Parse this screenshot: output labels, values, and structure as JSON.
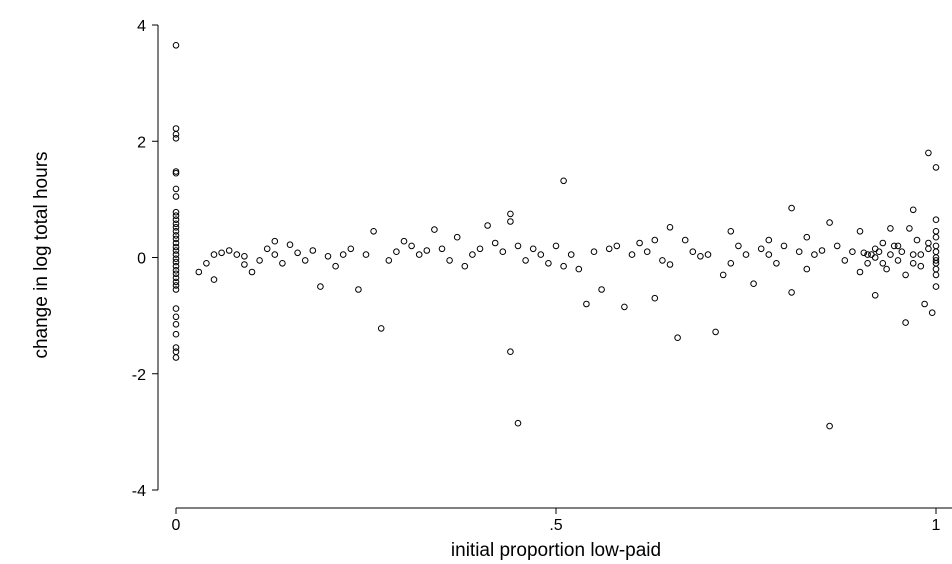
{
  "chart_data": {
    "type": "scatter",
    "title": "",
    "xlabel": "initial proportion low-paid",
    "ylabel": "change in log total hours",
    "xlim": [
      0,
      1
    ],
    "ylim": [
      -4,
      4
    ],
    "x_ticks": [
      0,
      0.5,
      1
    ],
    "x_tick_labels": [
      "0",
      ".5",
      "1"
    ],
    "y_ticks": [
      -4,
      -2,
      0,
      2,
      4
    ],
    "y_tick_labels": [
      "-4",
      "-2",
      "0",
      "2",
      "4"
    ],
    "grid": false,
    "legend": "none",
    "marker": "hollow-circle",
    "points": [
      [
        0,
        3.65
      ],
      [
        0,
        2.22
      ],
      [
        0,
        2.12
      ],
      [
        0,
        2.05
      ],
      [
        0,
        1.48
      ],
      [
        0,
        1.45
      ],
      [
        0,
        1.18
      ],
      [
        0,
        1.05
      ],
      [
        0,
        0.78
      ],
      [
        0,
        0.72
      ],
      [
        0,
        0.65
      ],
      [
        0,
        0.58
      ],
      [
        0,
        0.52
      ],
      [
        0,
        0.45
      ],
      [
        0,
        0.38
      ],
      [
        0,
        0.32
      ],
      [
        0,
        0.25
      ],
      [
        0,
        0.18
      ],
      [
        0,
        0.12
      ],
      [
        0,
        0.05
      ],
      [
        0,
        -0.02
      ],
      [
        0,
        -0.08
      ],
      [
        0,
        -0.15
      ],
      [
        0,
        -0.22
      ],
      [
        0,
        -0.28
      ],
      [
        0,
        -0.35
      ],
      [
        0,
        -0.42
      ],
      [
        0,
        -0.48
      ],
      [
        0,
        -0.55
      ],
      [
        0,
        -0.88
      ],
      [
        0,
        -1.02
      ],
      [
        0,
        -1.15
      ],
      [
        0,
        -1.32
      ],
      [
        0,
        -1.55
      ],
      [
        0,
        -1.62
      ],
      [
        0,
        -1.72
      ],
      [
        0.03,
        -0.25
      ],
      [
        0.04,
        -0.1
      ],
      [
        0.05,
        -0.38
      ],
      [
        0.05,
        0.05
      ],
      [
        0.06,
        0.08
      ],
      [
        0.07,
        0.12
      ],
      [
        0.08,
        0.05
      ],
      [
        0.09,
        -0.12
      ],
      [
        0.09,
        0.02
      ],
      [
        0.1,
        -0.25
      ],
      [
        0.11,
        -0.05
      ],
      [
        0.12,
        0.15
      ],
      [
        0.13,
        0.28
      ],
      [
        0.13,
        0.05
      ],
      [
        0.14,
        -0.1
      ],
      [
        0.15,
        0.22
      ],
      [
        0.16,
        0.08
      ],
      [
        0.17,
        -0.05
      ],
      [
        0.18,
        0.12
      ],
      [
        0.19,
        -0.5
      ],
      [
        0.2,
        0.02
      ],
      [
        0.21,
        -0.15
      ],
      [
        0.22,
        0.05
      ],
      [
        0.23,
        0.15
      ],
      [
        0.24,
        -0.55
      ],
      [
        0.25,
        0.05
      ],
      [
        0.26,
        0.45
      ],
      [
        0.27,
        -1.22
      ],
      [
        0.28,
        -0.05
      ],
      [
        0.29,
        0.1
      ],
      [
        0.3,
        0.28
      ],
      [
        0.31,
        0.2
      ],
      [
        0.32,
        0.05
      ],
      [
        0.33,
        0.12
      ],
      [
        0.34,
        0.48
      ],
      [
        0.35,
        0.15
      ],
      [
        0.36,
        -0.05
      ],
      [
        0.37,
        0.35
      ],
      [
        0.38,
        -0.15
      ],
      [
        0.39,
        0.05
      ],
      [
        0.4,
        0.15
      ],
      [
        0.41,
        0.55
      ],
      [
        0.42,
        0.25
      ],
      [
        0.43,
        0.1
      ],
      [
        0.44,
        -1.62
      ],
      [
        0.44,
        0.62
      ],
      [
        0.44,
        0.75
      ],
      [
        0.45,
        -2.85
      ],
      [
        0.45,
        0.2
      ],
      [
        0.46,
        -0.05
      ],
      [
        0.47,
        0.15
      ],
      [
        0.48,
        0.05
      ],
      [
        0.49,
        -0.1
      ],
      [
        0.5,
        0.2
      ],
      [
        0.51,
        1.32
      ],
      [
        0.51,
        -0.15
      ],
      [
        0.52,
        0.05
      ],
      [
        0.53,
        -0.2
      ],
      [
        0.54,
        -0.8
      ],
      [
        0.55,
        0.1
      ],
      [
        0.56,
        -0.55
      ],
      [
        0.57,
        0.15
      ],
      [
        0.58,
        0.2
      ],
      [
        0.59,
        -0.85
      ],
      [
        0.6,
        0.05
      ],
      [
        0.61,
        0.25
      ],
      [
        0.62,
        0.1
      ],
      [
        0.63,
        -0.7
      ],
      [
        0.63,
        0.3
      ],
      [
        0.64,
        -0.05
      ],
      [
        0.65,
        0.52
      ],
      [
        0.65,
        -0.12
      ],
      [
        0.66,
        -1.38
      ],
      [
        0.67,
        0.3
      ],
      [
        0.68,
        0.1
      ],
      [
        0.69,
        0.02
      ],
      [
        0.7,
        0.05
      ],
      [
        0.71,
        -1.28
      ],
      [
        0.72,
        -0.3
      ],
      [
        0.73,
        0.45
      ],
      [
        0.73,
        -0.1
      ],
      [
        0.74,
        0.2
      ],
      [
        0.75,
        0.05
      ],
      [
        0.76,
        -0.45
      ],
      [
        0.77,
        0.15
      ],
      [
        0.78,
        0.3
      ],
      [
        0.78,
        0.05
      ],
      [
        0.79,
        -0.1
      ],
      [
        0.8,
        0.2
      ],
      [
        0.81,
        0.85
      ],
      [
        0.81,
        -0.6
      ],
      [
        0.82,
        0.1
      ],
      [
        0.83,
        0.35
      ],
      [
        0.83,
        -0.2
      ],
      [
        0.84,
        0.05
      ],
      [
        0.85,
        0.12
      ],
      [
        0.86,
        0.6
      ],
      [
        0.86,
        -2.9
      ],
      [
        0.87,
        0.2
      ],
      [
        0.88,
        -0.05
      ],
      [
        0.89,
        0.1
      ],
      [
        0.9,
        -0.25
      ],
      [
        0.9,
        0.45
      ],
      [
        0.91,
        0.05
      ],
      [
        0.92,
        -0.65
      ],
      [
        0.92,
        0.15
      ],
      [
        0.93,
        -0.1
      ],
      [
        0.94,
        0.5
      ],
      [
        0.95,
        0.2
      ],
      [
        0.96,
        -0.3
      ],
      [
        0.97,
        0.82
      ],
      [
        0.97,
        0.05
      ],
      [
        0.98,
        -0.15
      ],
      [
        0.99,
        0.25
      ],
      [
        1.0,
        -0.05
      ],
      [
        1.01,
        -0.95
      ],
      [
        1.02,
        1.8
      ],
      [
        1.02,
        0.15
      ],
      [
        1.03,
        -0.8
      ],
      [
        1.04,
        0.05
      ],
      [
        1.05,
        0.3
      ],
      [
        1.06,
        -0.1
      ],
      [
        1.07,
        0.5
      ],
      [
        1.08,
        -1.12
      ],
      [
        1.09,
        0.1
      ],
      [
        1.1,
        -0.05
      ],
      [
        1.11,
        0.2
      ],
      [
        1.12,
        0.05
      ],
      [
        1.13,
        -0.2
      ],
      [
        1.14,
        0.25
      ],
      [
        1.15,
        0.1
      ],
      [
        1.16,
        0.0
      ],
      [
        1.17,
        0.05
      ],
      [
        1.18,
        -0.1
      ],
      [
        1.19,
        0.08
      ],
      [
        1.0,
        1.55
      ],
      [
        1.0,
        0.65
      ],
      [
        1.0,
        0.45
      ],
      [
        1.0,
        0.35
      ],
      [
        1.0,
        0.2
      ],
      [
        1.0,
        0.1
      ],
      [
        1.0,
        0.0
      ],
      [
        1.0,
        -0.1
      ],
      [
        1.0,
        -0.2
      ],
      [
        1.0,
        -0.3
      ],
      [
        1.0,
        -0.5
      ]
    ]
  }
}
